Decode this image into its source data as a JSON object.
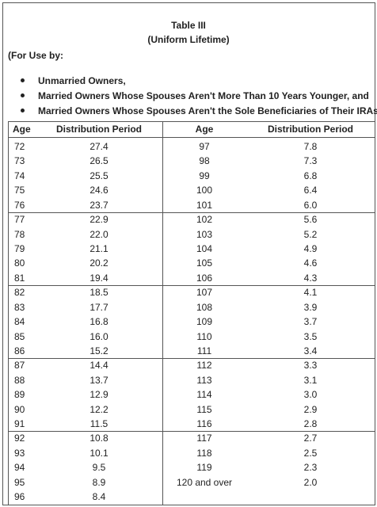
{
  "header": {
    "title": "Table III",
    "subtitle": "(Uniform Lifetime)",
    "intro": "(For Use by:",
    "bullets": [
      "Unmarried Owners,",
      "Married Owners Whose Spouses Aren't More Than 10 Years Younger, and",
      "Married Owners Whose Spouses Aren't the Sole Beneficiaries of Their IRAs)"
    ]
  },
  "table": {
    "columns": [
      "Age",
      "Distribution Period",
      "Age",
      "Distribution Period"
    ],
    "left_rows": [
      [
        "72",
        "27.4"
      ],
      [
        "73",
        "26.5"
      ],
      [
        "74",
        "25.5"
      ],
      [
        "75",
        "24.6"
      ],
      [
        "76",
        "23.7"
      ],
      [
        "77",
        "22.9"
      ],
      [
        "78",
        "22.0"
      ],
      [
        "79",
        "21.1"
      ],
      [
        "80",
        "20.2"
      ],
      [
        "81",
        "19.4"
      ],
      [
        "82",
        "18.5"
      ],
      [
        "83",
        "17.7"
      ],
      [
        "84",
        "16.8"
      ],
      [
        "85",
        "16.0"
      ],
      [
        "86",
        "15.2"
      ],
      [
        "87",
        "14.4"
      ],
      [
        "88",
        "13.7"
      ],
      [
        "89",
        "12.9"
      ],
      [
        "90",
        "12.2"
      ],
      [
        "91",
        "11.5"
      ],
      [
        "92",
        "10.8"
      ],
      [
        "93",
        "10.1"
      ],
      [
        "94",
        "9.5"
      ],
      [
        "95",
        "8.9"
      ],
      [
        "96",
        "8.4"
      ]
    ],
    "right_rows": [
      [
        "97",
        "7.8"
      ],
      [
        "98",
        "7.3"
      ],
      [
        "99",
        "6.8"
      ],
      [
        "100",
        "6.4"
      ],
      [
        "101",
        "6.0"
      ],
      [
        "102",
        "5.6"
      ],
      [
        "103",
        "5.2"
      ],
      [
        "104",
        "4.9"
      ],
      [
        "105",
        "4.6"
      ],
      [
        "106",
        "4.3"
      ],
      [
        "107",
        "4.1"
      ],
      [
        "108",
        "3.9"
      ],
      [
        "109",
        "3.7"
      ],
      [
        "110",
        "3.5"
      ],
      [
        "111",
        "3.4"
      ],
      [
        "112",
        "3.3"
      ],
      [
        "113",
        "3.1"
      ],
      [
        "114",
        "3.0"
      ],
      [
        "115",
        "2.9"
      ],
      [
        "116",
        "2.8"
      ],
      [
        "117",
        "2.7"
      ],
      [
        "118",
        "2.5"
      ],
      [
        "119",
        "2.3"
      ],
      [
        "120 and over",
        "2.0"
      ]
    ]
  }
}
